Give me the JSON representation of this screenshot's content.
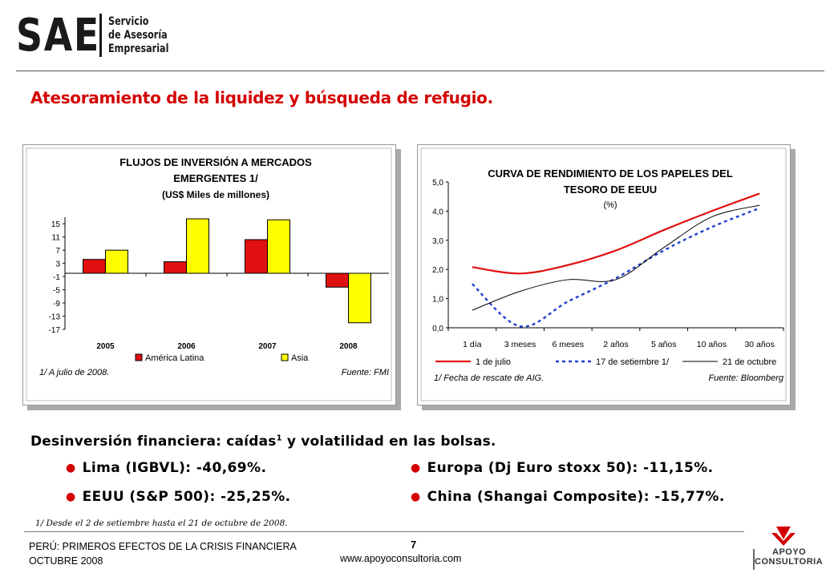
{
  "logo": {
    "abbr": "SAE",
    "line1": "Servicio",
    "line2": "de Asesoría",
    "line3": "Empresarial"
  },
  "title": "Atesoramiento de la liquidez y búsqueda de refugio.",
  "colors": {
    "red": "#e01010",
    "yellow": "#ffff00",
    "blue": "#1f3fcf",
    "title": "#d40000"
  },
  "chart_data": [
    {
      "type": "bar",
      "title": [
        "FLUJOS DE INVERSIÓN A MERCADOS",
        "EMERGENTES 1/",
        "(US$ Miles de millones)"
      ],
      "categories": [
        "2005",
        "2006",
        "2007",
        "2008"
      ],
      "series": [
        {
          "name": "América Latina",
          "color": "#e01010",
          "values": [
            4.2,
            3.5,
            10.2,
            -4.2
          ]
        },
        {
          "name": "Asia",
          "color": "#ffff00",
          "values": [
            7,
            16.5,
            16.2,
            -15
          ]
        }
      ],
      "yticks": [
        "15",
        "11",
        "7",
        "3",
        "-1",
        "-5",
        "-9",
        "-13",
        "-17"
      ],
      "ylim": [
        -17,
        17
      ],
      "legend": "bottom",
      "note": "1/ A julio de 2008.",
      "source": "Fuente: FMI"
    },
    {
      "type": "line",
      "title": [
        "CURVA DE RENDIMIENTO DE LOS PAPELES DEL",
        "TESORO DE EEUU",
        "(%)"
      ],
      "categories": [
        "1 día",
        "3 meses",
        "6 meses",
        "2 años",
        "5 años",
        "10 años",
        "30 años"
      ],
      "yticks": [
        "5,0",
        "4,0",
        "3,0",
        "2,0",
        "1,0",
        "0,0"
      ],
      "ylim": [
        0,
        5
      ],
      "series": [
        {
          "name": "1 de julio",
          "style": "solid-red",
          "color": "#e01010",
          "values": [
            2.08,
            1.86,
            2.15,
            2.65,
            3.35,
            4.0,
            4.6
          ]
        },
        {
          "name": "17 de setiembre 1/",
          "style": "dotted-blue",
          "color": "#1f3fcf",
          "values": [
            1.5,
            0.05,
            0.9,
            1.7,
            2.65,
            3.45,
            4.1
          ]
        },
        {
          "name": "21 de octubre",
          "style": "solid-black",
          "color": "#000000",
          "values": [
            0.6,
            1.25,
            1.65,
            1.65,
            2.75,
            3.8,
            4.2
          ]
        }
      ],
      "legend": "bottom",
      "note": "1/ Fecha de rescate de AIG.",
      "source": "Fuente: Bloomberg"
    }
  ],
  "section": {
    "heading": "Desinversión financiera: caídas",
    "heading_sup": "1",
    "heading_rest": " y volatilidad en las bolsas.",
    "bullets": [
      "Lima (IGBVL): -40,69%.",
      "EEUU (S&P 500): -25,25%.",
      "Europa (Dj Euro stoxx 50): -11,15%.",
      "China (Shangai Composite): -15,77%."
    ],
    "footnote": "1/ Desde el 2 de setiembre hasta el 21 de octubre de 2008."
  },
  "footer": {
    "line1": "PERÚ: PRIMEROS EFECTOS DE LA CRISIS FINANCIERA",
    "line2": "OCTUBRE 2008",
    "page": "7",
    "website": "www.apoyoconsultoria.com",
    "brand_line1": "APOYO",
    "brand_line2": "CONSULTORIA"
  }
}
